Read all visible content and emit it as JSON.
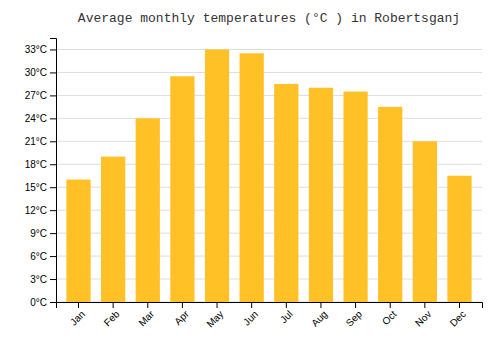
{
  "chart_data": {
    "type": "bar",
    "title": "Average monthly temperatures (°C ) in Robertsganj",
    "categories": [
      "Jan",
      "Feb",
      "Mar",
      "Apr",
      "May",
      "Jun",
      "Jul",
      "Aug",
      "Sep",
      "Oct",
      "Nov",
      "Dec"
    ],
    "values": [
      16,
      19,
      24,
      29.5,
      33,
      32.5,
      28.5,
      28,
      27.5,
      25.5,
      21,
      16.5
    ],
    "color": "#FFC125",
    "ylim": [
      0,
      34.5
    ],
    "yticks": [
      {
        "value": 0,
        "label": "0°C"
      },
      {
        "value": 3,
        "label": "3°C"
      },
      {
        "value": 6,
        "label": "6°C"
      },
      {
        "value": 9,
        "label": "9°C"
      },
      {
        "value": 12,
        "label": "12°C"
      },
      {
        "value": 15,
        "label": "15°C"
      },
      {
        "value": 18,
        "label": "18°C"
      },
      {
        "value": 21,
        "label": "21°C"
      },
      {
        "value": 24,
        "label": "24°C"
      },
      {
        "value": 27,
        "label": "27°C"
      },
      {
        "value": 30,
        "label": "30°C"
      },
      {
        "value": 33,
        "label": "33°C"
      }
    ],
    "grid": true
  }
}
